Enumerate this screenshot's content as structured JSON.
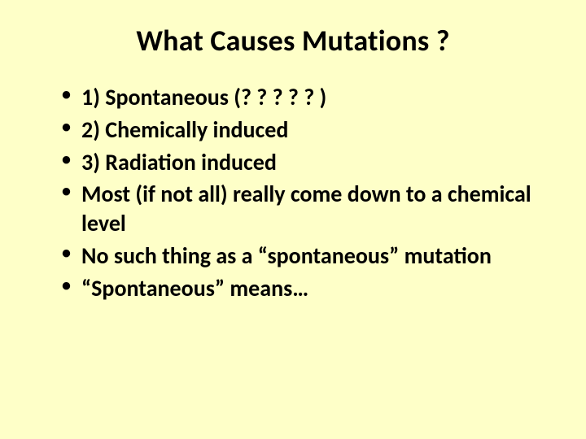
{
  "background_color": "#feffc8",
  "text_color": "#000000",
  "title": {
    "text": "What Causes Mutations ?",
    "fontsize": 36,
    "fontweight": 700
  },
  "bullets": {
    "fontsize": 28,
    "fontweight": 700,
    "items": [
      "1) Spontaneous (? ? ? ? ? )",
      "2) Chemically induced",
      "3) Radiation induced",
      "Most (if not all) really come down to a chemical level",
      "No such thing as a “spontaneous” mutation",
      "“Spontaneous” means…"
    ]
  }
}
